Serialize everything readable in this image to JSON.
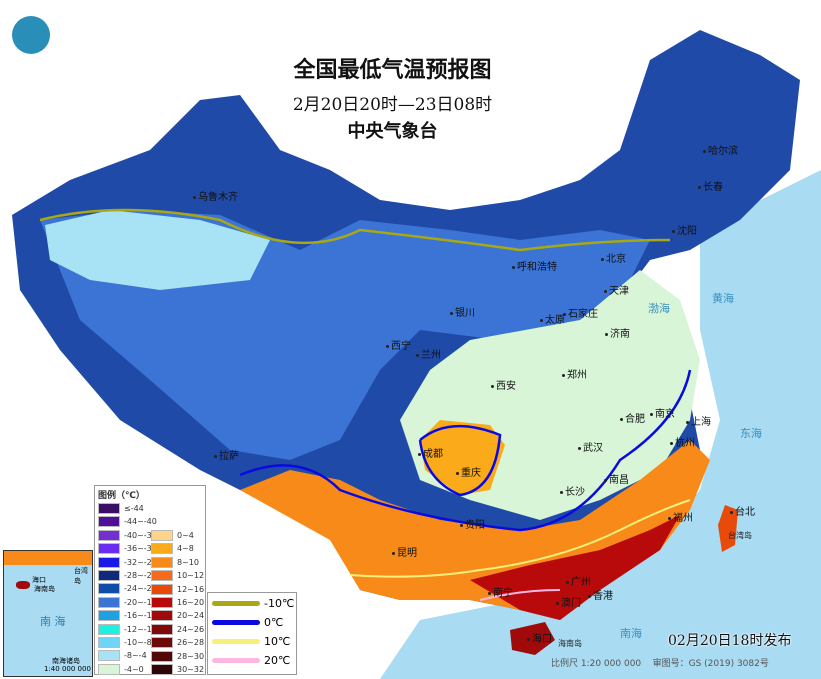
{
  "header": {
    "title": "全国最低气温预报图",
    "period": "2月20日20时—23日08时",
    "agency": "中央气象台"
  },
  "cities": [
    "乌鲁木齐",
    "哈尔滨",
    "长春",
    "沈阳",
    "呼和浩特",
    "北京",
    "天津",
    "石家庄",
    "太原",
    "济南",
    "银川",
    "西宁",
    "兰州",
    "西安",
    "郑州",
    "合肥",
    "南京",
    "上海",
    "杭州",
    "武汉",
    "成都",
    "重庆",
    "拉萨",
    "长沙",
    "南昌",
    "贵阳",
    "福州",
    "台北",
    "昆明",
    "南宁",
    "广州",
    "澳门",
    "香港",
    "海口"
  ],
  "seas": [
    "渤海",
    "黄海",
    "东海",
    "南海",
    "台湾岛",
    "海南岛"
  ],
  "legend": {
    "title": "图例（℃）",
    "cold": [
      {
        "label": "≤-44",
        "color": "#3b0f66"
      },
      {
        "label": "-44~-40",
        "color": "#4f0f99"
      },
      {
        "label": "-40~-36",
        "color": "#7230d0"
      },
      {
        "label": "-36~-32",
        "color": "#6a2cf0"
      },
      {
        "label": "-32~-28",
        "color": "#1a1ae8"
      },
      {
        "label": "-28~-24",
        "color": "#0f2a78"
      },
      {
        "label": "-24~-20",
        "color": "#0f4ea8"
      },
      {
        "label": "-20~-16",
        "color": "#3b74d4"
      },
      {
        "label": "-16~-12",
        "color": "#1fa0e0"
      },
      {
        "label": "-12~-10",
        "color": "#1ff0e0"
      },
      {
        "label": "-10~-8",
        "color": "#6fd4f5"
      },
      {
        "label": "-8~-4",
        "color": "#a8e2f5"
      },
      {
        "label": "-4~0",
        "color": "#d8f5d8"
      }
    ],
    "warm": [
      {
        "label": "0~4",
        "color": "#fcd48a"
      },
      {
        "label": "4~8",
        "color": "#fbaa1a"
      },
      {
        "label": "8~10",
        "color": "#f88a1a"
      },
      {
        "label": "10~12",
        "color": "#f76a1a"
      },
      {
        "label": "12~16",
        "color": "#e84a0a"
      },
      {
        "label": "16~20",
        "color": "#b80a0a"
      },
      {
        "label": "20~24",
        "color": "#a00a0a"
      },
      {
        "label": "24~26",
        "color": "#800a0a"
      },
      {
        "label": "26~28",
        "color": "#6a0a0a"
      },
      {
        "label": "28~30",
        "color": "#500808"
      },
      {
        "label": "30~32",
        "color": "#300505"
      }
    ],
    "isolines": [
      {
        "label": "-10℃",
        "color": "#a8a814"
      },
      {
        "label": "0℃",
        "color": "#0a0ae0"
      },
      {
        "label": "10℃",
        "color": "#f5f07a"
      },
      {
        "label": "20℃",
        "color": "#fcb8e0"
      }
    ]
  },
  "inset": {
    "sea": "南 海",
    "islands": "南海诸岛",
    "scale": "1:40 000 000",
    "haikou": "海口",
    "hainan": "海南岛",
    "taiwan": "台湾岛"
  },
  "footer": {
    "issued": "02月20日18时发布",
    "scale": "比例尺 1:20 000 000",
    "review": "审图号：GS (2019) 3082号"
  }
}
